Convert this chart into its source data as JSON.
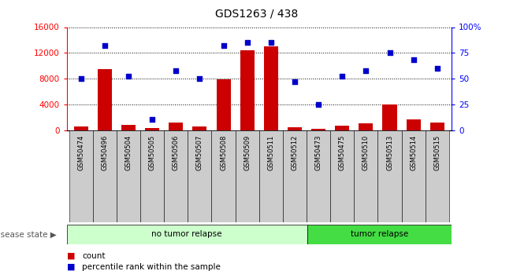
{
  "title": "GDS1263 / 438",
  "samples": [
    "GSM50474",
    "GSM50496",
    "GSM50504",
    "GSM50505",
    "GSM50506",
    "GSM50507",
    "GSM50508",
    "GSM50509",
    "GSM50511",
    "GSM50512",
    "GSM50473",
    "GSM50475",
    "GSM50510",
    "GSM50513",
    "GSM50514",
    "GSM50515"
  ],
  "counts": [
    600,
    9500,
    800,
    300,
    1200,
    600,
    7900,
    12400,
    13000,
    400,
    200,
    700,
    1000,
    4000,
    1700,
    1200
  ],
  "percentiles": [
    50,
    82,
    52,
    10,
    58,
    50,
    82,
    85,
    85,
    47,
    25,
    52,
    58,
    75,
    68,
    60
  ],
  "no_tumor_count": 10,
  "tumor_count": 6,
  "ylim_left": [
    0,
    16000
  ],
  "ylim_right": [
    0,
    100
  ],
  "yticks_left": [
    0,
    4000,
    8000,
    12000,
    16000
  ],
  "yticks_right": [
    0,
    25,
    50,
    75,
    100
  ],
  "bar_color": "#cc0000",
  "dot_color": "#0000cc",
  "no_tumor_color": "#ccffcc",
  "tumor_color": "#44dd44",
  "tick_bg_color": "#cccccc",
  "no_tumor_label": "no tumor relapse",
  "tumor_label": "tumor relapse",
  "count_legend": "count",
  "percentile_legend": "percentile rank within the sample",
  "disease_state_label": "disease state"
}
